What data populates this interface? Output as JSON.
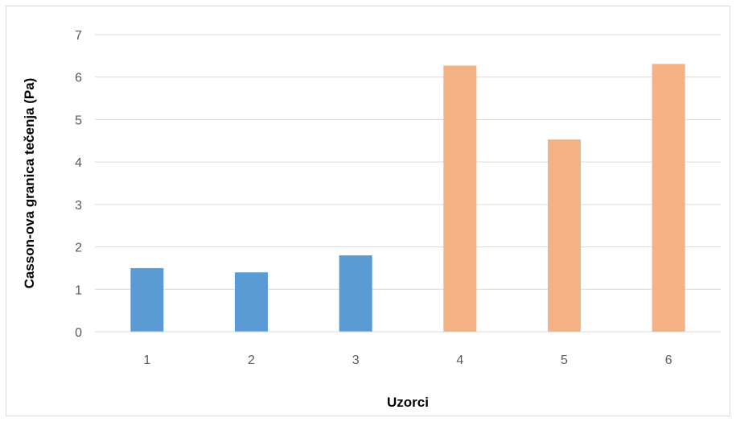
{
  "chart_data": {
    "type": "bar",
    "title": "",
    "xlabel": "Uzorci",
    "ylabel": "Casson-ova granica tečenja (Pa)",
    "categories": [
      "1",
      "2",
      "3",
      "4",
      "5",
      "6"
    ],
    "values": [
      1.5,
      1.4,
      1.8,
      6.27,
      4.53,
      6.31
    ],
    "bar_colors": [
      "#5b9bd5",
      "#5b9bd5",
      "#5b9bd5",
      "#f4b183",
      "#f4b183",
      "#f4b183"
    ],
    "ylim": [
      0,
      7
    ],
    "yticks": [
      "0",
      "1",
      "2",
      "3",
      "4",
      "5",
      "6",
      "7"
    ],
    "grid": true,
    "legend": "none"
  }
}
